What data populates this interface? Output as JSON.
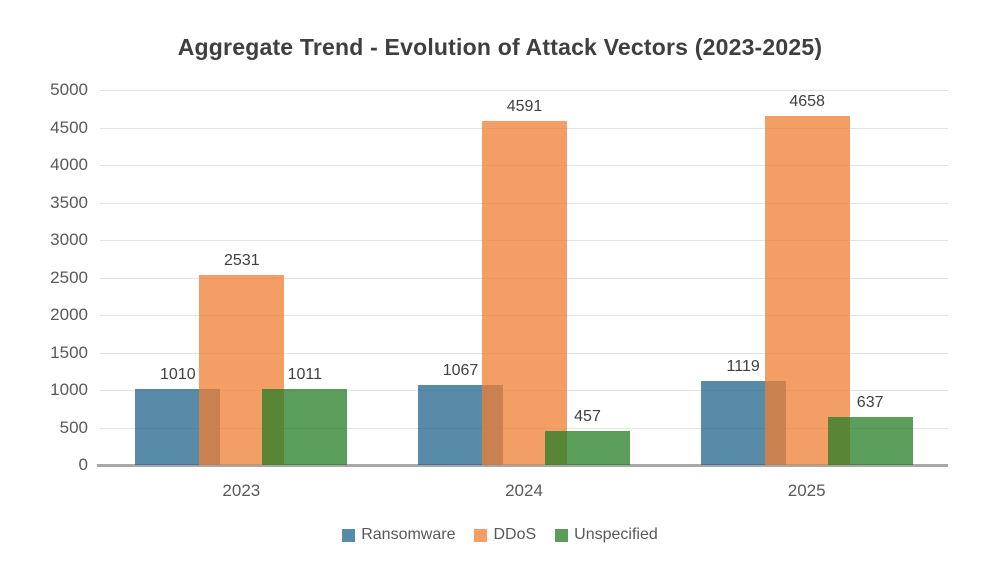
{
  "chart_data": {
    "type": "bar",
    "title": "Aggregate Trend - Evolution of Attack Vectors (2023-2025)",
    "categories": [
      "2023",
      "2024",
      "2025"
    ],
    "series": [
      {
        "name": "Ransomware",
        "color": "#20648B",
        "values": [
          1010,
          1067,
          1119
        ]
      },
      {
        "name": "DDoS",
        "color": "#ED7D31",
        "values": [
          2531,
          4591,
          4658
        ]
      },
      {
        "name": "Unspecified",
        "color": "#247E24",
        "values": [
          1011,
          457,
          637
        ]
      }
    ],
    "bar_opacity": 0.75,
    "ylim": [
      0,
      5000
    ],
    "ytick_step": 500,
    "ytick_labels": [
      "0",
      "500",
      "1000",
      "1500",
      "2000",
      "2500",
      "3000",
      "3500",
      "4000",
      "4500",
      "5000"
    ],
    "grid": true,
    "legend_position": "bottom",
    "value_labels_shown": true,
    "colors": {
      "axis_line": "#A8A8A8",
      "gridline": "#E4E4E4",
      "title_text": "#3F3F3F",
      "value_label_text": "#404040",
      "tick_text": "#595959"
    }
  }
}
